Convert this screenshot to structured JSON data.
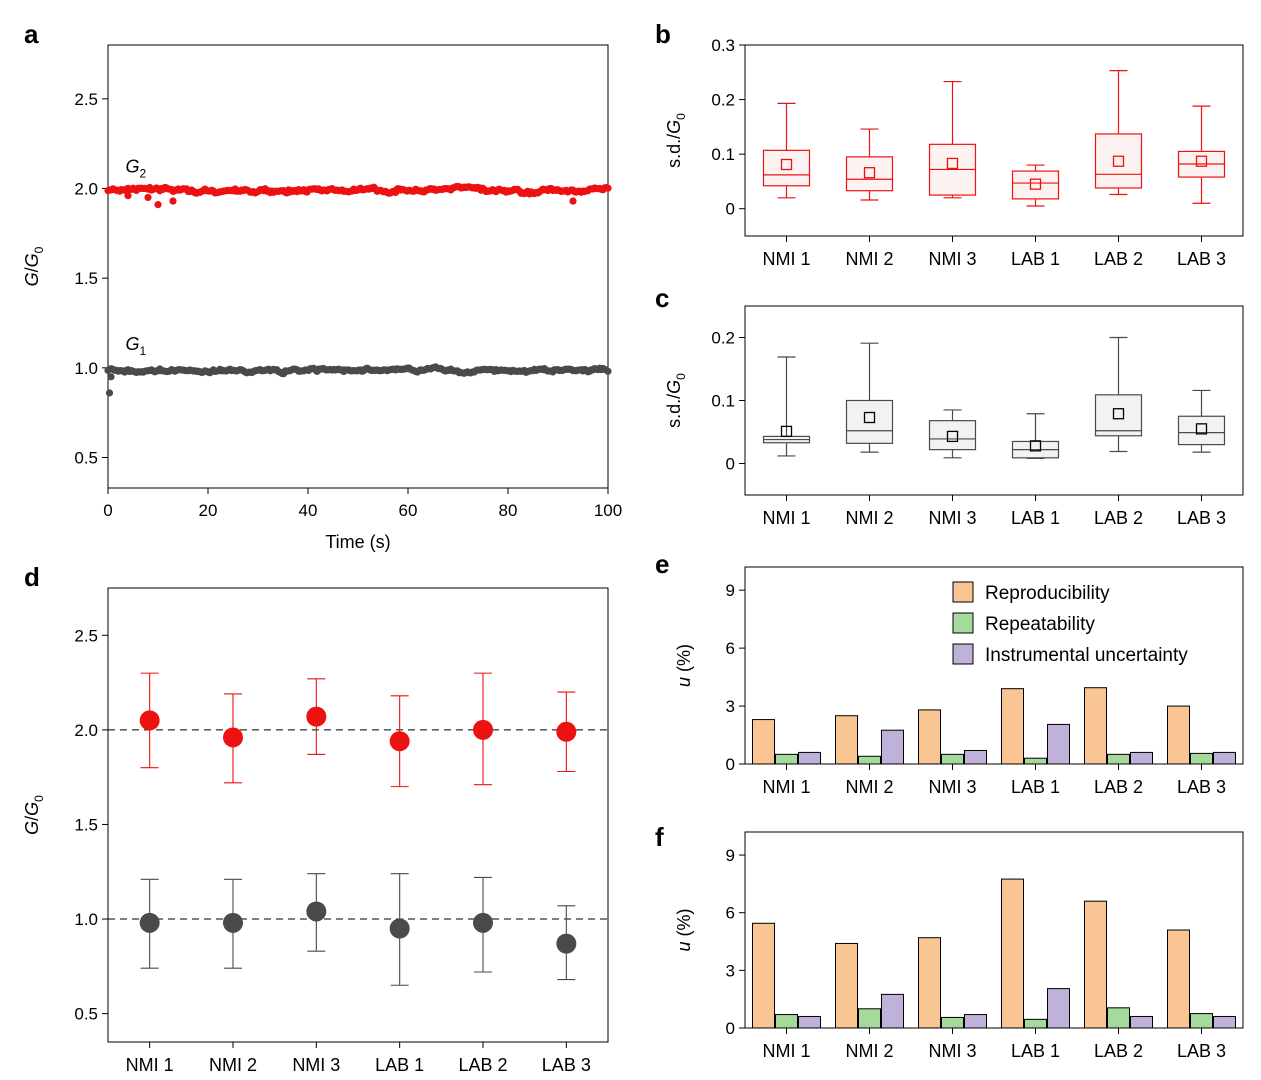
{
  "colors": {
    "red": "#ee1111",
    "gray": "#4a4a4a",
    "orange": "#f9c593",
    "green": "#a6d99c",
    "purple": "#bfb1d9",
    "red_box_fill": "#fdf2f2",
    "gray_box_fill": "#f2f2f2"
  },
  "chart_data": [
    {
      "panel": "a",
      "type": "scatter",
      "xlabel": "Time (s)",
      "ylabel": "G/G0",
      "ylabel_main": "G",
      "ylabel_den": "G",
      "ylabel_sub": "0",
      "xlim": [
        0,
        100
      ],
      "ylim": [
        0.33,
        2.8
      ],
      "xticks": [
        0,
        20,
        40,
        60,
        80,
        100
      ],
      "yticks": [
        "0.5",
        "1.0",
        "1.5",
        "2.0",
        "2.5"
      ],
      "annotations": [
        {
          "text": "G",
          "sub": "2",
          "x": 3.5,
          "y": 2.09
        },
        {
          "text": "G",
          "sub": "1",
          "x": 3.5,
          "y": 1.1
        }
      ],
      "series": [
        {
          "name": "G2",
          "color": "red",
          "mean": 1.99,
          "noise": 0.012,
          "n": 300,
          "dips": [
            [
              10,
              1.91
            ],
            [
              13,
              1.93
            ],
            [
              93,
              1.93
            ],
            [
              4,
              1.96
            ],
            [
              8,
              1.95
            ]
          ]
        },
        {
          "name": "G1",
          "color": "gray",
          "mean": 0.985,
          "noise": 0.01,
          "n": 300,
          "dips": [
            [
              0.3,
              0.86
            ],
            [
              0.6,
              0.95
            ]
          ]
        }
      ]
    },
    {
      "panel": "b",
      "type": "box",
      "ylabel": "s.d./G0",
      "ylim": [
        -0.05,
        0.3
      ],
      "yticks": [
        "0",
        "0.1",
        "0.2",
        "0.3"
      ],
      "categories": [
        "NMI 1",
        "NMI 2",
        "NMI 3",
        "LAB 1",
        "LAB 2",
        "LAB 3"
      ],
      "color": "red",
      "fill": "red_box_fill",
      "boxes": [
        {
          "min": 0.02,
          "q1": 0.042,
          "median": 0.062,
          "q3": 0.107,
          "max": 0.193,
          "mean": 0.081
        },
        {
          "min": 0.016,
          "q1": 0.033,
          "median": 0.054,
          "q3": 0.095,
          "max": 0.146,
          "mean": 0.066
        },
        {
          "min": 0.02,
          "q1": 0.025,
          "median": 0.072,
          "q3": 0.118,
          "max": 0.233,
          "mean": 0.083
        },
        {
          "min": 0.005,
          "q1": 0.018,
          "median": 0.047,
          "q3": 0.069,
          "max": 0.08,
          "mean": 0.045
        },
        {
          "min": 0.026,
          "q1": 0.038,
          "median": 0.063,
          "q3": 0.137,
          "max": 0.253,
          "mean": 0.087
        },
        {
          "min": 0.01,
          "q1": 0.058,
          "median": 0.082,
          "q3": 0.105,
          "max": 0.188,
          "mean": 0.087
        }
      ]
    },
    {
      "panel": "c",
      "type": "box",
      "ylabel": "s.d./G0",
      "ylim": [
        -0.05,
        0.25
      ],
      "yticks": [
        "0",
        "0.1",
        "0.2"
      ],
      "categories": [
        "NMI 1",
        "NMI 2",
        "NMI 3",
        "LAB 1",
        "LAB 2",
        "LAB 3"
      ],
      "color": "gray",
      "fill": "gray_box_fill",
      "boxes": [
        {
          "min": 0.012,
          "q1": 0.033,
          "median": 0.038,
          "q3": 0.043,
          "max": 0.169,
          "mean": 0.051
        },
        {
          "min": 0.018,
          "q1": 0.032,
          "median": 0.052,
          "q3": 0.1,
          "max": 0.191,
          "mean": 0.073
        },
        {
          "min": 0.009,
          "q1": 0.022,
          "median": 0.039,
          "q3": 0.068,
          "max": 0.085,
          "mean": 0.043
        },
        {
          "min": 0.008,
          "q1": 0.009,
          "median": 0.022,
          "q3": 0.035,
          "max": 0.079,
          "mean": 0.028
        },
        {
          "min": 0.019,
          "q1": 0.044,
          "median": 0.052,
          "q3": 0.109,
          "max": 0.2,
          "mean": 0.079
        },
        {
          "min": 0.018,
          "q1": 0.03,
          "median": 0.049,
          "q3": 0.075,
          "max": 0.116,
          "mean": 0.055
        }
      ]
    },
    {
      "panel": "d",
      "type": "errorbar",
      "ylabel": "G/G0",
      "ylabel_main": "G",
      "ylabel_den": "G",
      "ylabel_sub": "0",
      "ylim": [
        0.35,
        2.75
      ],
      "yticks": [
        "0.5",
        "1.0",
        "1.5",
        "2.0",
        "2.5"
      ],
      "reference_lines": [
        2.0,
        1.0
      ],
      "categories": [
        "NMI 1",
        "NMI 2",
        "NMI 3",
        "LAB 1",
        "LAB 2",
        "LAB 3"
      ],
      "series": [
        {
          "name": "G2",
          "color": "red",
          "values": [
            2.05,
            1.96,
            2.07,
            1.94,
            2.0,
            1.99
          ],
          "low": [
            1.8,
            1.72,
            1.87,
            1.7,
            1.71,
            1.78
          ],
          "high": [
            2.3,
            2.19,
            2.27,
            2.18,
            2.3,
            2.2
          ]
        },
        {
          "name": "G1",
          "color": "gray",
          "values": [
            0.98,
            0.98,
            1.04,
            0.95,
            0.98,
            0.87
          ],
          "low": [
            0.74,
            0.74,
            0.83,
            0.65,
            0.72,
            0.68
          ],
          "high": [
            1.21,
            1.21,
            1.24,
            1.24,
            1.22,
            1.07
          ]
        }
      ]
    },
    {
      "panel": "e",
      "type": "bar",
      "ylabel": "u (%)",
      "ylabel_italic": "u",
      "ylabel_rest": " (%)",
      "ylim": [
        0,
        10.2
      ],
      "yticks": [
        "0",
        "3",
        "6",
        "9"
      ],
      "categories": [
        "NMI 1",
        "NMI 2",
        "NMI 3",
        "LAB 1",
        "LAB 2",
        "LAB 3"
      ],
      "legend": {
        "position": "top-right",
        "entries": [
          {
            "label": "Reproducibility",
            "color": "orange"
          },
          {
            "label": "Repeatability",
            "color": "green"
          },
          {
            "label": "Instrumental uncertainty",
            "color": "purple"
          }
        ]
      },
      "series": [
        {
          "name": "Reproducibility",
          "color": "orange",
          "values": [
            2.3,
            2.5,
            2.8,
            3.9,
            3.95,
            3.0
          ]
        },
        {
          "name": "Repeatability",
          "color": "green",
          "values": [
            0.5,
            0.4,
            0.5,
            0.3,
            0.5,
            0.55
          ]
        },
        {
          "name": "Instrumental uncertainty",
          "color": "purple",
          "values": [
            0.6,
            1.75,
            0.7,
            2.05,
            0.6,
            0.6
          ]
        }
      ]
    },
    {
      "panel": "f",
      "type": "bar",
      "ylabel": "u (%)",
      "ylabel_italic": "u",
      "ylabel_rest": " (%)",
      "ylim": [
        0,
        10.2
      ],
      "yticks": [
        "0",
        "3",
        "6",
        "9"
      ],
      "categories": [
        "NMI 1",
        "NMI 2",
        "NMI 3",
        "LAB 1",
        "LAB 2",
        "LAB 3"
      ],
      "series": [
        {
          "name": "Reproducibility",
          "color": "orange",
          "values": [
            5.45,
            4.4,
            4.7,
            7.75,
            6.6,
            5.1
          ]
        },
        {
          "name": "Repeatability",
          "color": "green",
          "values": [
            0.7,
            1.0,
            0.55,
            0.45,
            1.05,
            0.75
          ]
        },
        {
          "name": "Instrumental uncertainty",
          "color": "purple",
          "values": [
            0.6,
            1.75,
            0.7,
            2.05,
            0.6,
            0.6
          ]
        }
      ]
    }
  ]
}
